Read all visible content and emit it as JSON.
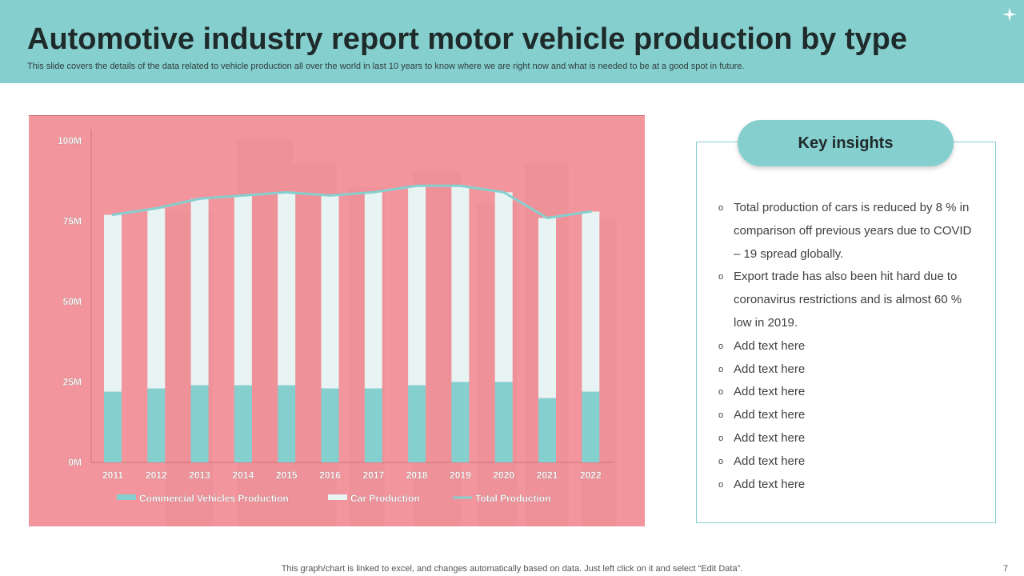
{
  "header": {
    "title": "Automotive industry report motor vehicle production by type",
    "subtitle": "This slide covers the details of the data related to  vehicle production all over the world  in  last 10 years to know where we are right now and what is needed to be at a good spot in future."
  },
  "colors": {
    "header_bg": "#86cfcf",
    "chart_bg": "#f2959c",
    "commercial": "#86cfcf",
    "car": "#e8f3f3",
    "total_line": "#86cfcf"
  },
  "chart_data": {
    "type": "bar",
    "stacked": true,
    "categories": [
      "2011",
      "2012",
      "2013",
      "2014",
      "2015",
      "2016",
      "2017",
      "2018",
      "2019",
      "2020",
      "2021",
      "2022"
    ],
    "series": [
      {
        "name": "Commercial Vehicles Production",
        "kind": "bar",
        "values": [
          22,
          23,
          24,
          24,
          24,
          23,
          23,
          24,
          25,
          25,
          20,
          22
        ]
      },
      {
        "name": "Car Production",
        "kind": "bar",
        "values": [
          55,
          56,
          58,
          59,
          60,
          60,
          61,
          62,
          61,
          59,
          56,
          56
        ]
      },
      {
        "name": "Total Production",
        "kind": "line",
        "values": [
          77,
          79,
          82,
          83,
          84,
          83,
          84,
          86,
          86,
          84,
          76,
          78
        ]
      }
    ],
    "yticks": [
      "0M",
      "25M",
      "50M",
      "75M",
      "100M"
    ],
    "ylim": [
      0,
      100
    ],
    "legend": [
      "Commercial Vehicles Production",
      "Car Production",
      "Total Production"
    ],
    "legend_position": "bottom",
    "grid": false
  },
  "insights": {
    "title": "Key insights",
    "bullet_icon": "o",
    "items": [
      "Total production of cars  is reduced  by  8 % in comparison off previous years due to COVID – 19 spread  globally.",
      "Export trade has also been hit hard due to coronavirus restrictions  and is almost 60 % low in 2019.",
      "Add text here",
      "Add text here",
      "Add text here",
      "Add text here",
      "Add text here",
      "Add text here",
      "Add text here"
    ]
  },
  "footer": {
    "note": "This graph/chart is linked to excel,  and changes automatically based on data. Just left click on it and select “Edit Data”.",
    "page_number": "7"
  }
}
